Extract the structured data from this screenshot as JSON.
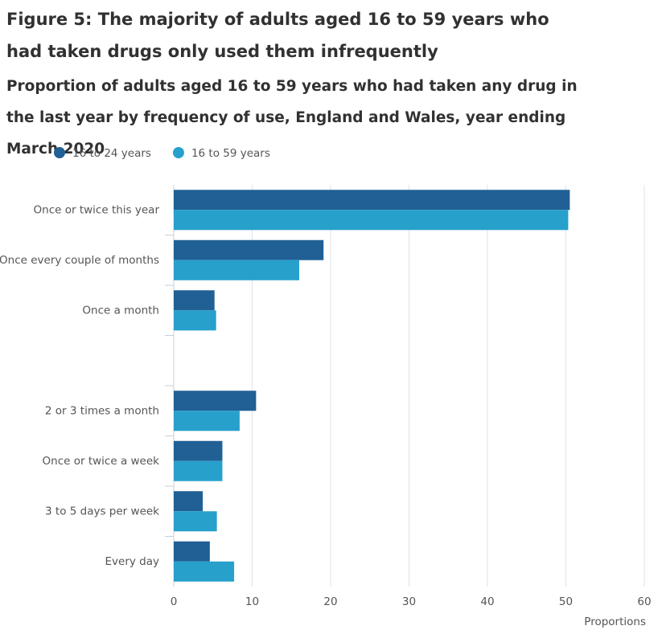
{
  "chart_data": {
    "type": "hbar",
    "title": "Figure 5: The majority of adults aged 16 to 59 years who had taken drugs only used them infrequently",
    "subtitle": "Proportion of adults aged 16 to 59 years who had taken any drug in the last year by frequency of use, England and Wales, year ending March 2020",
    "categories": [
      "Once or twice this year",
      "Once every couple of months",
      "Once a month",
      null,
      "2 or 3 times a month",
      "Once or twice a week",
      "3 to 5 days per week",
      "Every day"
    ],
    "series": [
      {
        "name": "16 to 24 years",
        "color": "#206095",
        "values": [
          50.5,
          19.1,
          5.2,
          null,
          10.5,
          6.2,
          3.7,
          4.6
        ]
      },
      {
        "name": "16 to 59 years",
        "color": "#27a0cc",
        "values": [
          50.3,
          16.0,
          5.4,
          null,
          8.4,
          6.2,
          5.5,
          7.7
        ]
      }
    ],
    "xlim": [
      0,
      60
    ],
    "xticks": [
      0,
      10,
      20,
      30,
      40,
      50,
      60
    ],
    "xlabel": "Proportions",
    "grid": true,
    "legend": "top"
  }
}
